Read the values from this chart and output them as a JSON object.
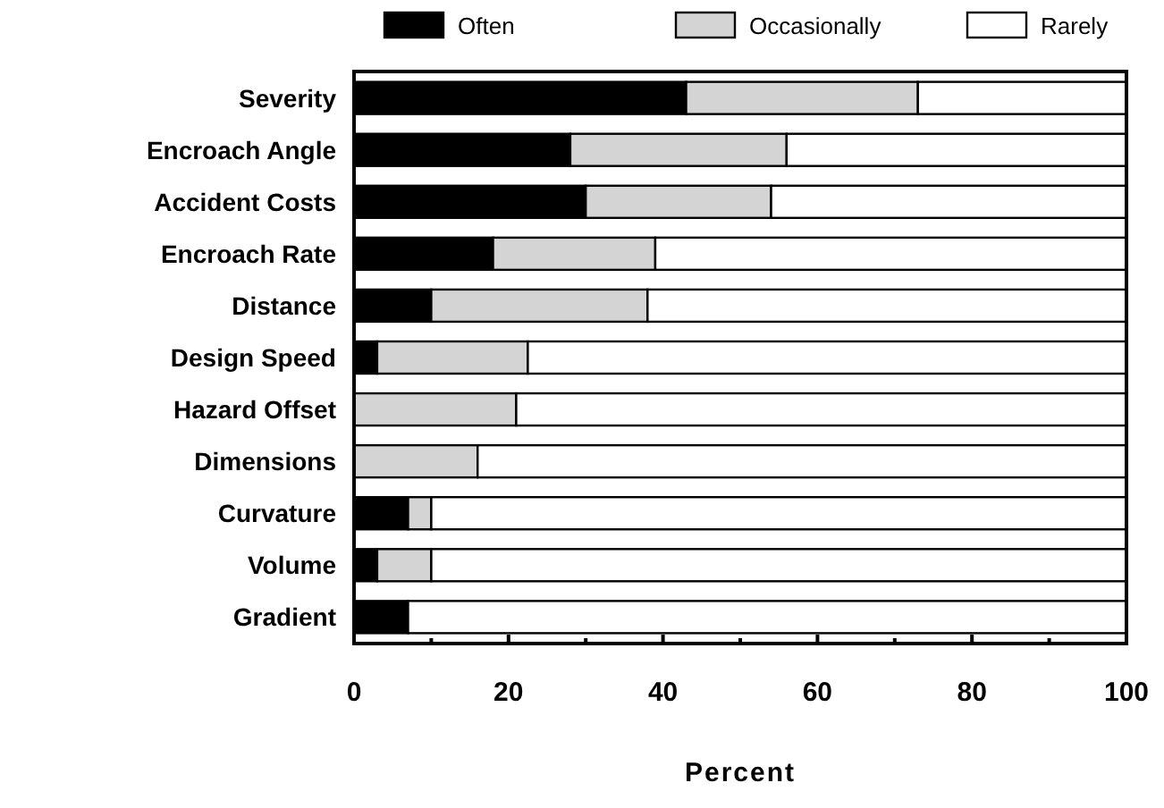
{
  "chart_data": {
    "type": "bar",
    "orientation": "horizontal",
    "stacked": true,
    "xlabel": "Percent",
    "categories": [
      "Severity",
      "Encroach Angle",
      "Accident Costs",
      "Encroach Rate",
      "Distance",
      "Design Speed",
      "Hazard Offset",
      "Dimensions",
      "Curvature",
      "Volume",
      "Gradient"
    ],
    "series": [
      {
        "name": "Often",
        "color": "#000000",
        "values": [
          43,
          28,
          30,
          18,
          10,
          3,
          0,
          0,
          7,
          3,
          7
        ]
      },
      {
        "name": "Occasionally",
        "color": "#d4d4d4",
        "values": [
          30,
          28,
          24,
          21,
          28,
          19.5,
          21,
          16,
          3,
          7,
          0
        ]
      },
      {
        "name": "Rarely",
        "color": "#ffffff",
        "values": [
          27,
          44,
          46,
          61,
          62,
          77.5,
          79,
          84,
          90,
          90,
          93
        ]
      }
    ],
    "xlim": [
      0,
      100
    ],
    "xticks": [
      0,
      {
        "value": 10,
        "label": null
      },
      20,
      {
        "value": 30,
        "label": null
      },
      40,
      {
        "value": 50,
        "label": null
      },
      60,
      {
        "value": 70,
        "label": null
      },
      80,
      {
        "value": 90,
        "label": null
      },
      100
    ],
    "grid": false,
    "legend": "top"
  }
}
